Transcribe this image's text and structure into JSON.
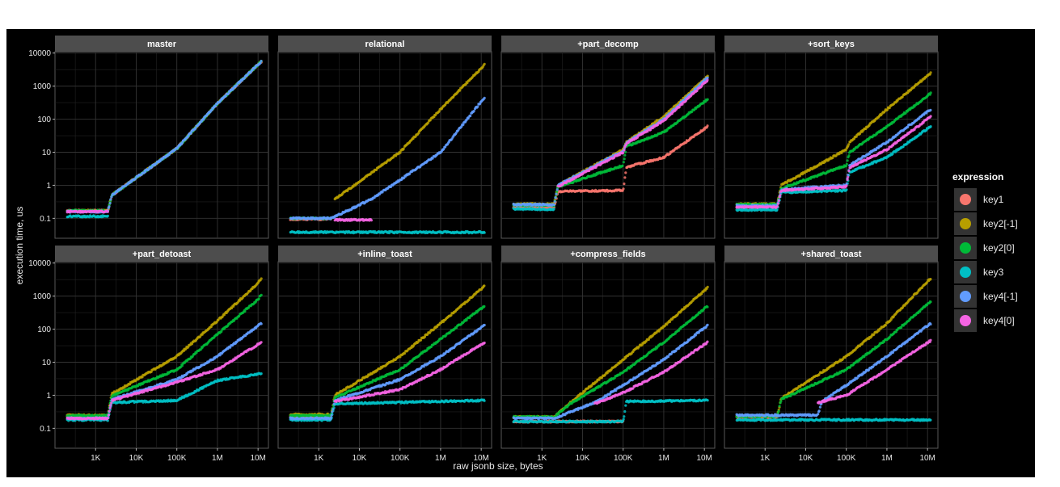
{
  "chart_data": {
    "type": "scatter",
    "title": "",
    "xlabel": "raw jsonb size, bytes",
    "ylabel": "execution time, us",
    "x_scale": "log10",
    "y_scale": "log10",
    "xlim": [
      100,
      18000000
    ],
    "ylim": [
      0.025,
      11000
    ],
    "x_ticks": [
      {
        "value": 1000,
        "label": "1K"
      },
      {
        "value": 10000,
        "label": "10K"
      },
      {
        "value": 100000,
        "label": "100K"
      },
      {
        "value": 1000000,
        "label": "1M"
      },
      {
        "value": 10000000,
        "label": "10M"
      }
    ],
    "y_ticks": [
      {
        "value": 0.1,
        "label": "0.1"
      },
      {
        "value": 1,
        "label": "1"
      },
      {
        "value": 10,
        "label": "10"
      },
      {
        "value": 100,
        "label": "100"
      },
      {
        "value": 1000,
        "label": "1000"
      },
      {
        "value": 10000,
        "label": "10000"
      }
    ],
    "legend": {
      "title": "expression",
      "placement": "right",
      "entries": [
        {
          "name": "key1",
          "color": "#F8766D"
        },
        {
          "name": "key2[-1]",
          "color": "#B79F00"
        },
        {
          "name": "key2[0]",
          "color": "#00BA38"
        },
        {
          "name": "key3",
          "color": "#00BFC4"
        },
        {
          "name": "key4[-1]",
          "color": "#619CFF"
        },
        {
          "name": "key4[0]",
          "color": "#F564E3"
        }
      ]
    },
    "panels": [
      {
        "name": "master",
        "series": [
          {
            "name": "key1",
            "x": [
              200,
              2000,
              2500,
              100000,
              1000000,
              10000000,
              12000000
            ],
            "y": [
              0.17,
              0.17,
              0.5,
              13,
              300,
              4500,
              5500
            ]
          },
          {
            "name": "key2[-1]",
            "x": [
              200,
              2000,
              2500,
              100000,
              1000000,
              10000000,
              12000000
            ],
            "y": [
              0.17,
              0.17,
              0.5,
              13,
              300,
              4500,
              5500
            ]
          },
          {
            "name": "key2[0]",
            "x": [
              200,
              2000,
              2500,
              100000,
              1000000,
              10000000,
              12000000
            ],
            "y": [
              0.17,
              0.17,
              0.5,
              13,
              300,
              4500,
              5500
            ]
          },
          {
            "name": "key3",
            "x": [
              200,
              2000
            ],
            "y": [
              0.115,
              0.115
            ]
          },
          {
            "name": "key4[-1]",
            "x": [
              200,
              2000,
              2500,
              100000,
              1000000,
              10000000,
              12000000
            ],
            "y": [
              0.16,
              0.16,
              0.5,
              13,
              300,
              4500,
              5500
            ]
          },
          {
            "name": "key4[0]",
            "x": [
              200,
              2000
            ],
            "y": [
              0.16,
              0.16
            ]
          }
        ]
      },
      {
        "name": "relational",
        "series": [
          {
            "name": "key1",
            "x": [
              200,
              2000
            ],
            "y": [
              0.095,
              0.095
            ]
          },
          {
            "name": "key2[-1]",
            "x": [
              2500,
              100000,
              1000000,
              10000000,
              12000000
            ],
            "y": [
              0.38,
              10,
              200,
              3500,
              4500
            ]
          },
          {
            "name": "key2[0]",
            "x": [
              200,
              2000
            ],
            "y": [
              0.1,
              0.1
            ]
          },
          {
            "name": "key3",
            "x": [
              200,
              12000000
            ],
            "y": [
              0.038,
              0.038
            ]
          },
          {
            "name": "key4[-1]",
            "x": [
              200,
              2000,
              20000,
              1000000,
              12000000
            ],
            "y": [
              0.1,
              0.1,
              0.38,
              10,
              450
            ]
          },
          {
            "name": "key4[0]",
            "x": [
              2500,
              20000
            ],
            "y": [
              0.09,
              0.09
            ]
          }
        ]
      },
      {
        "name": "+part_decomp",
        "series": [
          {
            "name": "key1",
            "x": [
              200,
              2000,
              2500,
              100000,
              120000,
              1000000,
              12000000
            ],
            "y": [
              0.22,
              0.22,
              0.65,
              0.7,
              3.5,
              7,
              60
            ]
          },
          {
            "name": "key2[-1]",
            "x": [
              200,
              2000,
              2500,
              100000,
              120000,
              1000000,
              12000000
            ],
            "y": [
              0.27,
              0.27,
              1,
              12,
              20,
              120,
              2000
            ]
          },
          {
            "name": "key2[0]",
            "x": [
              200,
              2000,
              2500,
              100000,
              120000,
              1000000,
              12000000
            ],
            "y": [
              0.25,
              0.25,
              0.9,
              4,
              15,
              40,
              400
            ]
          },
          {
            "name": "key3",
            "x": [
              200,
              2000
            ],
            "y": [
              0.19,
              0.19
            ]
          },
          {
            "name": "key4[-1]",
            "x": [
              200,
              2000,
              2500,
              100000,
              120000,
              1000000,
              12000000
            ],
            "y": [
              0.26,
              0.26,
              1,
              11,
              19,
              100,
              1800
            ]
          },
          {
            "name": "key4[0]",
            "x": [
              2500,
              100000,
              120000,
              1000000,
              12000000
            ],
            "y": [
              0.9,
              10,
              18,
              90,
              1500
            ]
          }
        ]
      },
      {
        "name": "+sort_keys",
        "series": [
          {
            "name": "key1",
            "x": [
              200,
              2000
            ],
            "y": [
              0.22,
              0.22
            ]
          },
          {
            "name": "key2[-1]",
            "x": [
              200,
              2000,
              2500,
              100000,
              120000,
              1000000,
              12000000
            ],
            "y": [
              0.27,
              0.27,
              1.0,
              12,
              20,
              200,
              2500
            ]
          },
          {
            "name": "key2[0]",
            "x": [
              200,
              2000,
              2500,
              100000,
              120000,
              1000000,
              12000000
            ],
            "y": [
              0.26,
              0.26,
              0.8,
              4,
              10,
              60,
              600
            ]
          },
          {
            "name": "key3",
            "x": [
              200,
              2000,
              2500,
              100000,
              120000,
              1000000,
              12000000
            ],
            "y": [
              0.18,
              0.18,
              0.6,
              0.7,
              2.5,
              7,
              60
            ]
          },
          {
            "name": "key4[-1]",
            "x": [
              200,
              2000,
              2500,
              100000,
              120000,
              1000000,
              12000000
            ],
            "y": [
              0.24,
              0.24,
              0.75,
              1.0,
              4,
              20,
              200
            ]
          },
          {
            "name": "key4[0]",
            "x": [
              200,
              2000,
              2500,
              100000,
              120000,
              1000000,
              12000000
            ],
            "y": [
              0.22,
              0.22,
              0.7,
              0.9,
              3.5,
              12,
              120
            ]
          }
        ]
      },
      {
        "name": "+part_detoast",
        "series": [
          {
            "name": "key1",
            "x": [
              200,
              2000
            ],
            "y": [
              0.22,
              0.22
            ]
          },
          {
            "name": "key2[-1]",
            "x": [
              200,
              2000,
              2500,
              100000,
              1000000,
              10000000,
              12000000
            ],
            "y": [
              0.25,
              0.25,
              1.1,
              15,
              180,
              2500,
              3500
            ]
          },
          {
            "name": "key2[0]",
            "x": [
              200,
              2000,
              2500,
              100000,
              1000000,
              10000000,
              12000000
            ],
            "y": [
              0.24,
              0.24,
              0.95,
              6,
              70,
              800,
              1100
            ]
          },
          {
            "name": "key3",
            "x": [
              200,
              2000,
              2500,
              100000,
              1000000,
              12000000
            ],
            "y": [
              0.18,
              0.18,
              0.6,
              0.7,
              2.8,
              4.5
            ]
          },
          {
            "name": "key4[-1]",
            "x": [
              200,
              2000,
              2500,
              100000,
              1000000,
              12000000
            ],
            "y": [
              0.2,
              0.2,
              0.75,
              3,
              15,
              150
            ]
          },
          {
            "name": "key4[0]",
            "x": [
              200,
              2000,
              2500,
              100000,
              1000000,
              12000000
            ],
            "y": [
              0.2,
              0.2,
              0.7,
              2.5,
              6,
              40
            ]
          }
        ]
      },
      {
        "name": "+inline_toast",
        "series": [
          {
            "name": "key1",
            "x": [
              200,
              2000
            ],
            "y": [
              0.22,
              0.22
            ]
          },
          {
            "name": "key2[-1]",
            "x": [
              200,
              2000,
              2500,
              100000,
              1000000,
              12000000
            ],
            "y": [
              0.26,
              0.26,
              1.0,
              15,
              150,
              2000
            ]
          },
          {
            "name": "key2[0]",
            "x": [
              200,
              2000,
              2500,
              100000,
              1000000,
              12000000
            ],
            "y": [
              0.24,
              0.24,
              0.85,
              6,
              50,
              500
            ]
          },
          {
            "name": "key3",
            "x": [
              200,
              2000,
              2500,
              12000000
            ],
            "y": [
              0.18,
              0.18,
              0.55,
              0.7
            ]
          },
          {
            "name": "key4[-1]",
            "x": [
              200,
              2000,
              2500,
              100000,
              1000000,
              12000000
            ],
            "y": [
              0.2,
              0.2,
              0.7,
              3,
              15,
              130
            ]
          },
          {
            "name": "key4[0]",
            "x": [
              2500,
              100000,
              1000000,
              12000000
            ],
            "y": [
              0.65,
              1.5,
              6,
              40
            ]
          }
        ]
      },
      {
        "name": "+compress_fields",
        "series": [
          {
            "name": "key1",
            "x": [
              200,
              100000
            ],
            "y": [
              0.16,
              0.16
            ]
          },
          {
            "name": "key2[-1]",
            "x": [
              200,
              2000,
              5000,
              100000,
              1000000,
              12000000
            ],
            "y": [
              0.22,
              0.22,
              0.6,
              12,
              120,
              1800
            ]
          },
          {
            "name": "key2[0]",
            "x": [
              200,
              2000,
              5000,
              100000,
              1000000,
              12000000
            ],
            "y": [
              0.22,
              0.22,
              0.55,
              5,
              40,
              500
            ]
          },
          {
            "name": "key3",
            "x": [
              200,
              100000,
              120000,
              12000000
            ],
            "y": [
              0.16,
              0.16,
              0.65,
              0.7
            ]
          },
          {
            "name": "key4[-1]",
            "x": [
              200,
              2000,
              20000,
              100000,
              1000000,
              12000000
            ],
            "y": [
              0.2,
              0.2,
              0.6,
              2,
              12,
              130
            ]
          },
          {
            "name": "key4[0]",
            "x": [
              20000,
              100000,
              1000000,
              12000000
            ],
            "y": [
              0.55,
              1.2,
              5,
              40
            ]
          }
        ]
      },
      {
        "name": "+shared_toast",
        "series": [
          {
            "name": "key1",
            "x": [
              200,
              2000
            ],
            "y": [
              0.22,
              0.22
            ]
          },
          {
            "name": "key2[-1]",
            "x": [
              200,
              2000,
              2500,
              100000,
              1000000,
              12000000
            ],
            "y": [
              0.24,
              0.24,
              0.8,
              15,
              150,
              3500
            ]
          },
          {
            "name": "key2[0]",
            "x": [
              200,
              2000,
              2500,
              100000,
              1000000,
              12000000
            ],
            "y": [
              0.23,
              0.23,
              0.75,
              6,
              50,
              700
            ]
          },
          {
            "name": "key3",
            "x": [
              200,
              12000000
            ],
            "y": [
              0.18,
              0.18
            ]
          },
          {
            "name": "key4[-1]",
            "x": [
              200,
              20000,
              25000,
              100000,
              1000000,
              12000000
            ],
            "y": [
              0.25,
              0.25,
              0.65,
              2,
              15,
              150
            ]
          },
          {
            "name": "key4[0]",
            "x": [
              20000,
              100000,
              1000000,
              12000000
            ],
            "y": [
              0.6,
              1.0,
              6,
              45
            ]
          }
        ]
      }
    ]
  }
}
